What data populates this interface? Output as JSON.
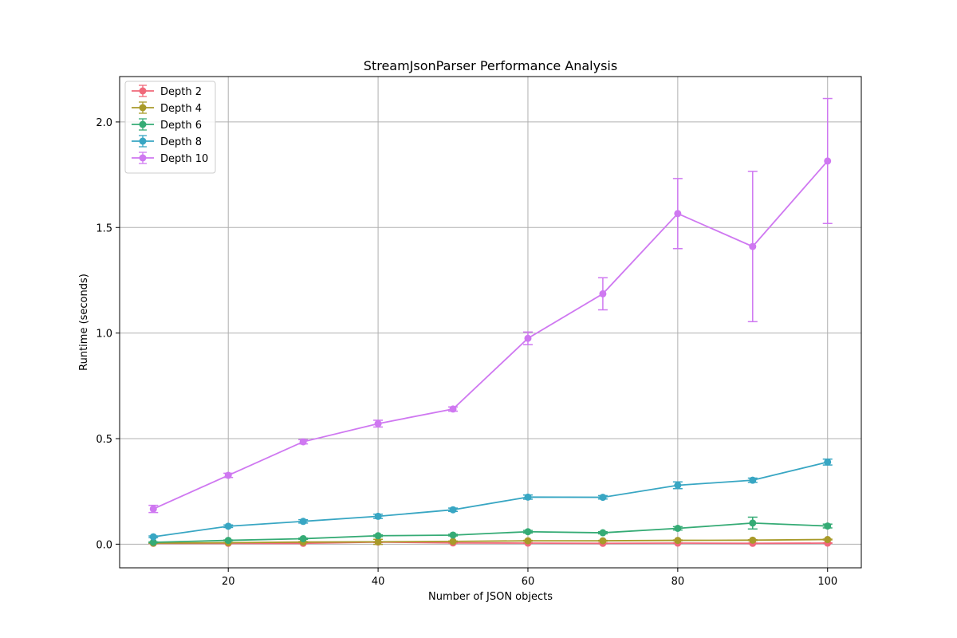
{
  "chart_data": {
    "type": "line",
    "title": "StreamJsonParser Performance Analysis",
    "xlabel": "Number of JSON objects",
    "ylabel": "Runtime (seconds)",
    "x": [
      10,
      20,
      30,
      40,
      50,
      60,
      70,
      80,
      90,
      100
    ],
    "xlim": [
      5.5,
      104.5
    ],
    "ylim": [
      -0.112,
      2.215
    ],
    "xticks": [
      20,
      40,
      60,
      80,
      100
    ],
    "yticks": [
      0.0,
      0.5,
      1.0,
      1.5,
      2.0
    ],
    "xtick_labels": [
      "20",
      "40",
      "60",
      "80",
      "100"
    ],
    "ytick_labels": [
      "0.0",
      "0.5",
      "1.0",
      "1.5",
      "2.0"
    ],
    "grid": true,
    "legend_position": "top-left",
    "error_bars": true,
    "series": [
      {
        "name": "Depth 2",
        "color": "#f0687a",
        "values": [
          0.004,
          0.004,
          0.004,
          0.01,
          0.006,
          0.005,
          0.004,
          0.005,
          0.004,
          0.005
        ],
        "errors": [
          0.001,
          0.001,
          0.001,
          0.002,
          0.001,
          0.001,
          0.001,
          0.001,
          0.001,
          0.001
        ]
      },
      {
        "name": "Depth 4",
        "color": "#a89a29",
        "values": [
          0.005,
          0.007,
          0.01,
          0.011,
          0.013,
          0.016,
          0.016,
          0.018,
          0.019,
          0.022
        ],
        "errors": [
          0.001,
          0.001,
          0.002,
          0.012,
          0.002,
          0.002,
          0.002,
          0.002,
          0.002,
          0.002
        ]
      },
      {
        "name": "Depth 6",
        "color": "#35ab75",
        "values": [
          0.009,
          0.018,
          0.026,
          0.04,
          0.043,
          0.059,
          0.054,
          0.075,
          0.1,
          0.086
        ],
        "errors": [
          0.002,
          0.002,
          0.003,
          0.004,
          0.004,
          0.006,
          0.005,
          0.008,
          0.028,
          0.009
        ]
      },
      {
        "name": "Depth 8",
        "color": "#38a6c3",
        "values": [
          0.035,
          0.085,
          0.108,
          0.132,
          0.163,
          0.223,
          0.222,
          0.279,
          0.303,
          0.389
        ],
        "errors": [
          0.004,
          0.006,
          0.008,
          0.01,
          0.008,
          0.01,
          0.008,
          0.016,
          0.01,
          0.014
        ]
      },
      {
        "name": "Depth 10",
        "color": "#cf78f1",
        "values": [
          0.167,
          0.326,
          0.485,
          0.571,
          0.64,
          0.975,
          1.186,
          1.566,
          1.41,
          1.815
        ],
        "errors": [
          0.017,
          0.01,
          0.01,
          0.016,
          0.01,
          0.03,
          0.076,
          0.166,
          0.356,
          0.296
        ]
      }
    ]
  }
}
